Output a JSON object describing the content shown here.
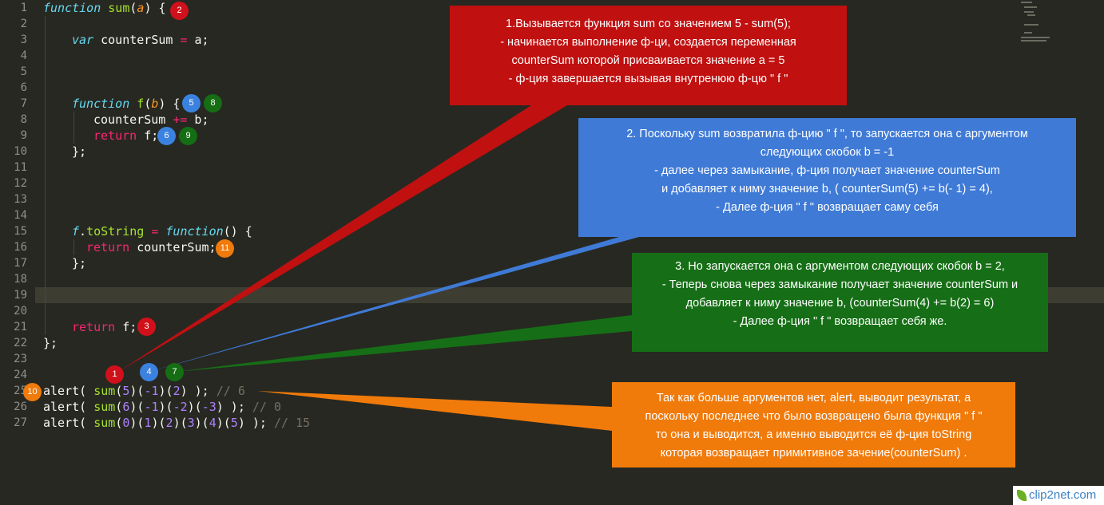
{
  "line_numbers": [
    "1",
    "2",
    "3",
    "4",
    "5",
    "6",
    "7",
    "8",
    "9",
    "10",
    "11",
    "12",
    "13",
    "14",
    "15",
    "16",
    "17",
    "18",
    "19",
    "20",
    "21",
    "22",
    "23",
    "24",
    "25",
    "26",
    "27"
  ],
  "code": {
    "l1": [
      "function",
      " ",
      "sum",
      "(",
      "a",
      ") {"
    ],
    "l3": [
      "var",
      " counterSum ",
      "=",
      " a;"
    ],
    "l7": [
      "function",
      " ",
      "f",
      "(",
      "b",
      ") {"
    ],
    "l8": [
      "counterSum ",
      "+=",
      " b;"
    ],
    "l9": [
      "return",
      " f;"
    ],
    "l10": [
      "};"
    ],
    "l15": [
      "f",
      ".",
      "toString",
      " ",
      "=",
      " ",
      "function",
      "() {"
    ],
    "l16": [
      "return",
      " counterSum;"
    ],
    "l17": [
      "};"
    ],
    "l21": [
      "return",
      " f;"
    ],
    "l22": [
      "};"
    ],
    "l25": [
      "alert( ",
      "sum",
      "(",
      "5",
      ")(",
      "-1",
      ")(",
      "2",
      ") ); ",
      "// 6"
    ],
    "l26": [
      "alert( ",
      "sum",
      "(",
      "6",
      ")(",
      "-1",
      ")(",
      "-2",
      ")(",
      "-3",
      ") ); ",
      "// 0"
    ],
    "l27": [
      "alert( ",
      "sum",
      "(",
      "0",
      ")(",
      "1",
      ")(",
      "2",
      ")(",
      "3",
      ")(",
      "4",
      ")(",
      "5",
      ") ); ",
      "// 15"
    ]
  },
  "badges": {
    "b1": "1",
    "b2": "2",
    "b3": "3",
    "b4": "4",
    "b5": "5",
    "b6": "6",
    "b7": "7",
    "b8": "8",
    "b9": "9",
    "b10": "10",
    "b11": "11"
  },
  "callouts": {
    "red": [
      "1.Вызывается функция sum со значением 5 - sum(5);",
      "- начинается выполнение ф-ци, создается переменная",
      "counterSum которой присваивается значение a = 5",
      "- ф-ция завершается вызывая внутренюю ф-цю \" f \""
    ],
    "blue": [
      "2. Поскольку sum возвратила ф-цию \" f \", то запускается она с аргументом",
      "следующих скобок b = -1",
      "- далее через замыкание, ф-ция получает значение counterSum",
      "и добавляет к ниму значение b, ( counterSum(5) += b(- 1) = 4),",
      "- Далее ф-ция \" f \" возвращает саму себя"
    ],
    "green": [
      "3. Но запускается она с аргументом следующих скобок b = 2,",
      "- Теперь снова через замыкание получает значение counterSum и",
      "добавляет к ниму значение b, (counterSum(4) += b(2) = 6)",
      "- Далее ф-ция \" f \" возвращает себя же."
    ],
    "orange": [
      "Так как больше аргументов нет, alert, выводит результат, а",
      "поскольку последнее что было возвращено была функция \" f \"",
      "то она и  выводится, а именно выводится её ф-ция toString",
      "которая возвращает примитивное зачение(counterSum) ."
    ]
  },
  "colors": {
    "red": "#c01010",
    "blue": "#3f7ad6",
    "green": "#166f16",
    "orange": "#f07a0a",
    "editor_bg": "#272822"
  },
  "watermark": "clip2net.com"
}
